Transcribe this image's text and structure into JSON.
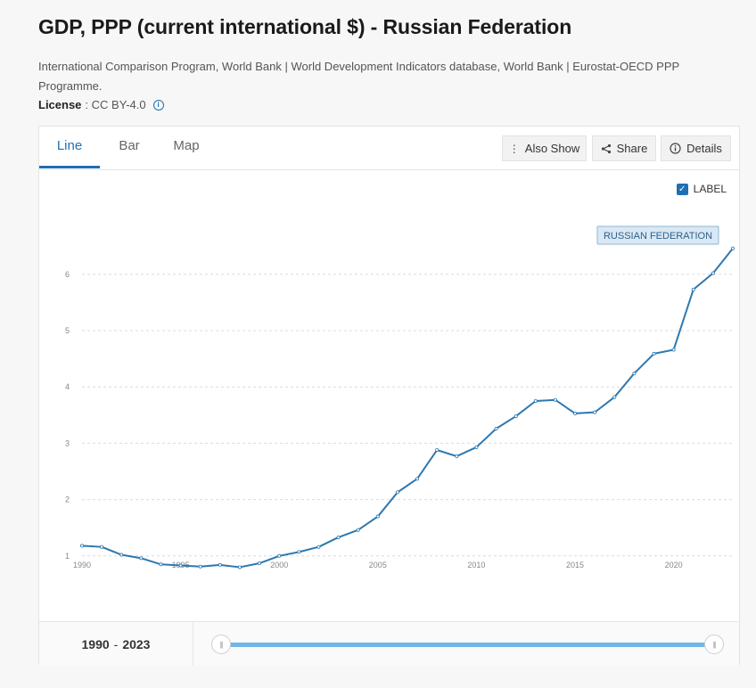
{
  "header": {
    "title": "GDP, PPP (current international $) - Russian Federation",
    "source": "International Comparison Program, World Bank | World Development Indicators database, World Bank | Eurostat-OECD PPP Programme.",
    "license_label": "License",
    "license_sep": ":",
    "license_value": "CC BY-4.0"
  },
  "tabs": [
    {
      "label": "Line",
      "active": true
    },
    {
      "label": "Bar",
      "active": false
    },
    {
      "label": "Map",
      "active": false
    }
  ],
  "toolbar": {
    "also_show": "Also Show",
    "share": "Share",
    "details": "Details"
  },
  "label_toggle": {
    "text": "LABEL",
    "checked": true
  },
  "chart_data": {
    "type": "line",
    "title": "GDP, PPP (current international $) - Russian Federation",
    "xlabel": "",
    "ylabel": "",
    "xlim": [
      1990,
      2023
    ],
    "ylim": [
      0.7,
      6.6
    ],
    "yticks": [
      1,
      2,
      3,
      4,
      5,
      6
    ],
    "xticks": [
      1990,
      1995,
      2000,
      2005,
      2010,
      2015,
      2020
    ],
    "grid": true,
    "series": [
      {
        "name": "RUSSIAN FEDERATION",
        "color": "#2d78b0",
        "x": [
          1990,
          1991,
          1992,
          1993,
          1994,
          1995,
          1996,
          1997,
          1998,
          1999,
          2000,
          2001,
          2002,
          2003,
          2004,
          2005,
          2006,
          2007,
          2008,
          2009,
          2010,
          2011,
          2012,
          2013,
          2014,
          2015,
          2016,
          2017,
          2018,
          2019,
          2020,
          2021,
          2022,
          2023
        ],
        "y": [
          1.18,
          1.16,
          1.02,
          0.96,
          0.85,
          0.83,
          0.81,
          0.84,
          0.8,
          0.87,
          1.0,
          1.07,
          1.16,
          1.33,
          1.46,
          1.7,
          2.13,
          2.37,
          2.88,
          2.77,
          2.93,
          3.26,
          3.48,
          3.75,
          3.77,
          3.53,
          3.55,
          3.82,
          4.24,
          4.59,
          4.66,
          5.73,
          6.02,
          6.46
        ]
      }
    ]
  },
  "range": {
    "start": "1990",
    "sep": "-",
    "end": "2023"
  },
  "colors": {
    "accent": "#1f6fb2",
    "line": "#2d78b0",
    "slider": "#6fb7e6"
  }
}
